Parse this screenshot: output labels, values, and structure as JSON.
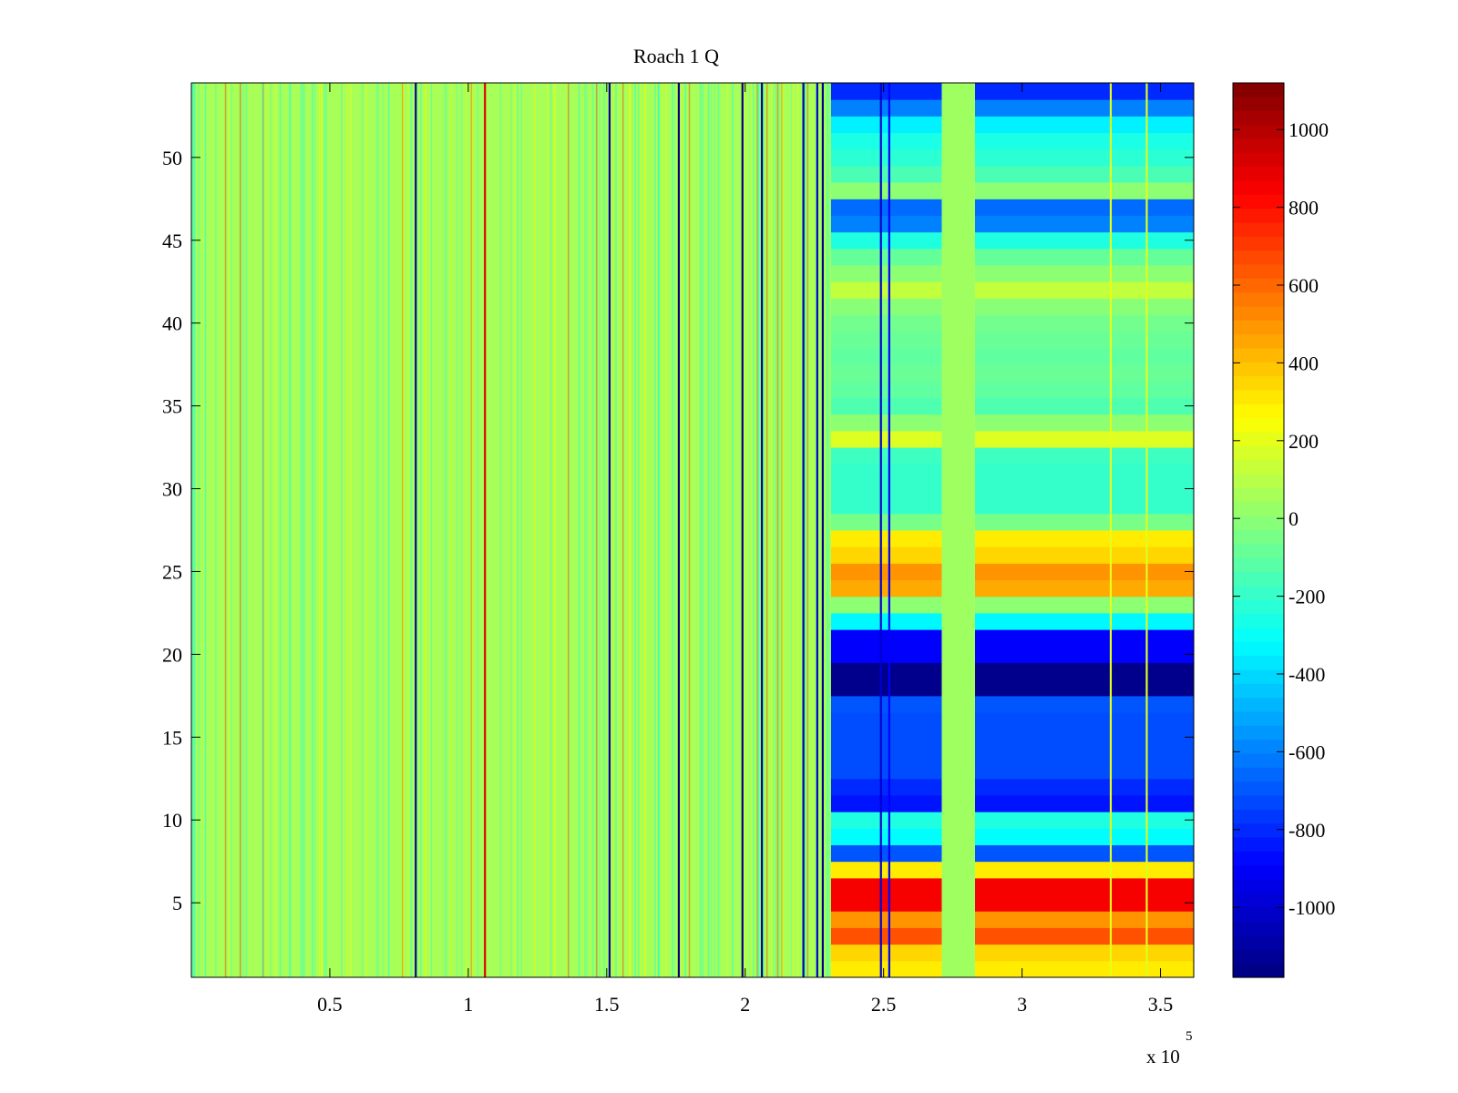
{
  "chart_data": {
    "type": "heatmap",
    "title": "Roach 1 Q",
    "xlabel": "",
    "ylabel": "",
    "x_exponent_label": "x 10",
    "x_exponent_power": "5",
    "xlim": [
      0,
      3.62
    ],
    "ylim": [
      0.5,
      54.5
    ],
    "x_ticks": [
      0.5,
      1,
      1.5,
      2,
      2.5,
      3,
      3.5
    ],
    "x_tick_labels": [
      "0.5",
      "1",
      "1.5",
      "2",
      "2.5",
      "3",
      "3.5"
    ],
    "y_ticks": [
      5,
      10,
      15,
      20,
      25,
      30,
      35,
      40,
      45,
      50
    ],
    "y_tick_labels": [
      "5",
      "10",
      "15",
      "20",
      "25",
      "30",
      "35",
      "40",
      "45",
      "50"
    ],
    "colorbar": {
      "colormap": "jet",
      "clim": [
        -1180,
        1120
      ],
      "ticks": [
        -1000,
        -800,
        -600,
        -400,
        -200,
        0,
        200,
        400,
        600,
        800,
        1000
      ],
      "tick_labels": [
        "-1000",
        "-800",
        "-600",
        "-400",
        "-200",
        "0",
        "200",
        "400",
        "600",
        "800",
        "1000"
      ]
    },
    "background_value": 60,
    "segments_x": [
      {
        "name": "first",
        "from": 2.31,
        "to": 2.71
      },
      {
        "name": "second",
        "from": 2.83,
        "to": 3.62
      }
    ],
    "gap_x": {
      "from": 2.71,
      "to": 2.83,
      "value": 40
    },
    "row_values_right": [
      300,
      350,
      650,
      500,
      850,
      850,
      300,
      -700,
      -320,
      -250,
      -850,
      -800,
      -720,
      -720,
      -720,
      -720,
      -700,
      -1150,
      -1150,
      -900,
      -900,
      -330,
      0,
      450,
      500,
      350,
      300,
      -50,
      -200,
      -200,
      -200,
      -180,
      180,
      0,
      -140,
      -100,
      -80,
      -100,
      -80,
      -60,
      -10,
      120,
      0,
      -90,
      -250,
      -600,
      -650,
      0,
      -150,
      -220,
      -260,
      -350,
      -600,
      -800
    ],
    "vertical_streaks": [
      {
        "x": 0.81,
        "value": -1100
      },
      {
        "x": 1.06,
        "value": 900
      },
      {
        "x": 1.51,
        "value": -1100
      },
      {
        "x": 1.76,
        "value": -1150
      },
      {
        "x": 1.99,
        "value": -1150
      },
      {
        "x": 2.06,
        "value": -1100
      },
      {
        "x": 2.21,
        "value": -1100
      },
      {
        "x": 2.26,
        "value": -1000
      },
      {
        "x": 2.28,
        "value": -1150
      },
      {
        "x": 2.49,
        "value": -1000
      },
      {
        "x": 2.52,
        "value": -900
      },
      {
        "x": 3.32,
        "value": 200
      },
      {
        "x": 3.45,
        "value": 180
      }
    ]
  }
}
